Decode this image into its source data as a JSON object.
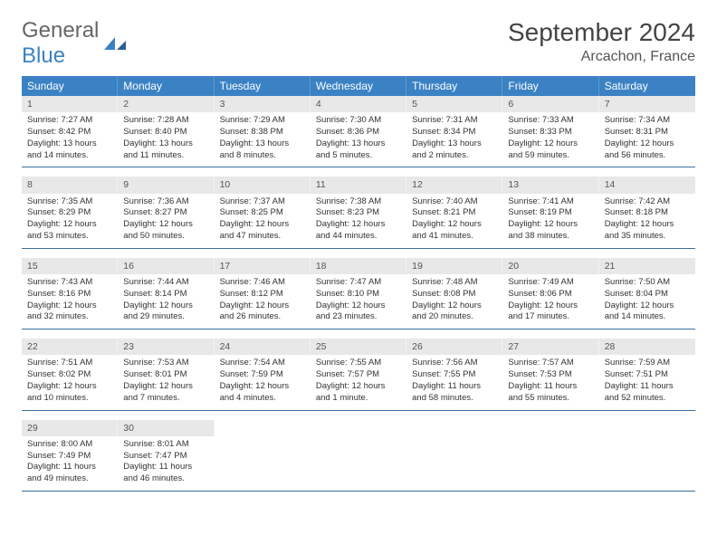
{
  "logo": {
    "general": "General",
    "blue": "Blue"
  },
  "title": "September 2024",
  "location": "Arcachon, France",
  "colors": {
    "header_bg": "#3b82c4",
    "header_text": "#ffffff",
    "daynum_bg": "#e8e8e8",
    "rule": "#3b6fa0",
    "logo_blue": "#3b82c4",
    "text": "#333333"
  },
  "dow": [
    "Sunday",
    "Monday",
    "Tuesday",
    "Wednesday",
    "Thursday",
    "Friday",
    "Saturday"
  ],
  "weeks": [
    [
      {
        "n": "1",
        "sr": "7:27 AM",
        "ss": "8:42 PM",
        "dl": "13 hours and 14 minutes."
      },
      {
        "n": "2",
        "sr": "7:28 AM",
        "ss": "8:40 PM",
        "dl": "13 hours and 11 minutes."
      },
      {
        "n": "3",
        "sr": "7:29 AM",
        "ss": "8:38 PM",
        "dl": "13 hours and 8 minutes."
      },
      {
        "n": "4",
        "sr": "7:30 AM",
        "ss": "8:36 PM",
        "dl": "13 hours and 5 minutes."
      },
      {
        "n": "5",
        "sr": "7:31 AM",
        "ss": "8:34 PM",
        "dl": "13 hours and 2 minutes."
      },
      {
        "n": "6",
        "sr": "7:33 AM",
        "ss": "8:33 PM",
        "dl": "12 hours and 59 minutes."
      },
      {
        "n": "7",
        "sr": "7:34 AM",
        "ss": "8:31 PM",
        "dl": "12 hours and 56 minutes."
      }
    ],
    [
      {
        "n": "8",
        "sr": "7:35 AM",
        "ss": "8:29 PM",
        "dl": "12 hours and 53 minutes."
      },
      {
        "n": "9",
        "sr": "7:36 AM",
        "ss": "8:27 PM",
        "dl": "12 hours and 50 minutes."
      },
      {
        "n": "10",
        "sr": "7:37 AM",
        "ss": "8:25 PM",
        "dl": "12 hours and 47 minutes."
      },
      {
        "n": "11",
        "sr": "7:38 AM",
        "ss": "8:23 PM",
        "dl": "12 hours and 44 minutes."
      },
      {
        "n": "12",
        "sr": "7:40 AM",
        "ss": "8:21 PM",
        "dl": "12 hours and 41 minutes."
      },
      {
        "n": "13",
        "sr": "7:41 AM",
        "ss": "8:19 PM",
        "dl": "12 hours and 38 minutes."
      },
      {
        "n": "14",
        "sr": "7:42 AM",
        "ss": "8:18 PM",
        "dl": "12 hours and 35 minutes."
      }
    ],
    [
      {
        "n": "15",
        "sr": "7:43 AM",
        "ss": "8:16 PM",
        "dl": "12 hours and 32 minutes."
      },
      {
        "n": "16",
        "sr": "7:44 AM",
        "ss": "8:14 PM",
        "dl": "12 hours and 29 minutes."
      },
      {
        "n": "17",
        "sr": "7:46 AM",
        "ss": "8:12 PM",
        "dl": "12 hours and 26 minutes."
      },
      {
        "n": "18",
        "sr": "7:47 AM",
        "ss": "8:10 PM",
        "dl": "12 hours and 23 minutes."
      },
      {
        "n": "19",
        "sr": "7:48 AM",
        "ss": "8:08 PM",
        "dl": "12 hours and 20 minutes."
      },
      {
        "n": "20",
        "sr": "7:49 AM",
        "ss": "8:06 PM",
        "dl": "12 hours and 17 minutes."
      },
      {
        "n": "21",
        "sr": "7:50 AM",
        "ss": "8:04 PM",
        "dl": "12 hours and 14 minutes."
      }
    ],
    [
      {
        "n": "22",
        "sr": "7:51 AM",
        "ss": "8:02 PM",
        "dl": "12 hours and 10 minutes."
      },
      {
        "n": "23",
        "sr": "7:53 AM",
        "ss": "8:01 PM",
        "dl": "12 hours and 7 minutes."
      },
      {
        "n": "24",
        "sr": "7:54 AM",
        "ss": "7:59 PM",
        "dl": "12 hours and 4 minutes."
      },
      {
        "n": "25",
        "sr": "7:55 AM",
        "ss": "7:57 PM",
        "dl": "12 hours and 1 minute."
      },
      {
        "n": "26",
        "sr": "7:56 AM",
        "ss": "7:55 PM",
        "dl": "11 hours and 58 minutes."
      },
      {
        "n": "27",
        "sr": "7:57 AM",
        "ss": "7:53 PM",
        "dl": "11 hours and 55 minutes."
      },
      {
        "n": "28",
        "sr": "7:59 AM",
        "ss": "7:51 PM",
        "dl": "11 hours and 52 minutes."
      }
    ],
    [
      {
        "n": "29",
        "sr": "8:00 AM",
        "ss": "7:49 PM",
        "dl": "11 hours and 49 minutes."
      },
      {
        "n": "30",
        "sr": "8:01 AM",
        "ss": "7:47 PM",
        "dl": "11 hours and 46 minutes."
      },
      null,
      null,
      null,
      null,
      null
    ]
  ],
  "labels": {
    "sunrise": "Sunrise: ",
    "sunset": "Sunset: ",
    "daylight": "Daylight: "
  }
}
